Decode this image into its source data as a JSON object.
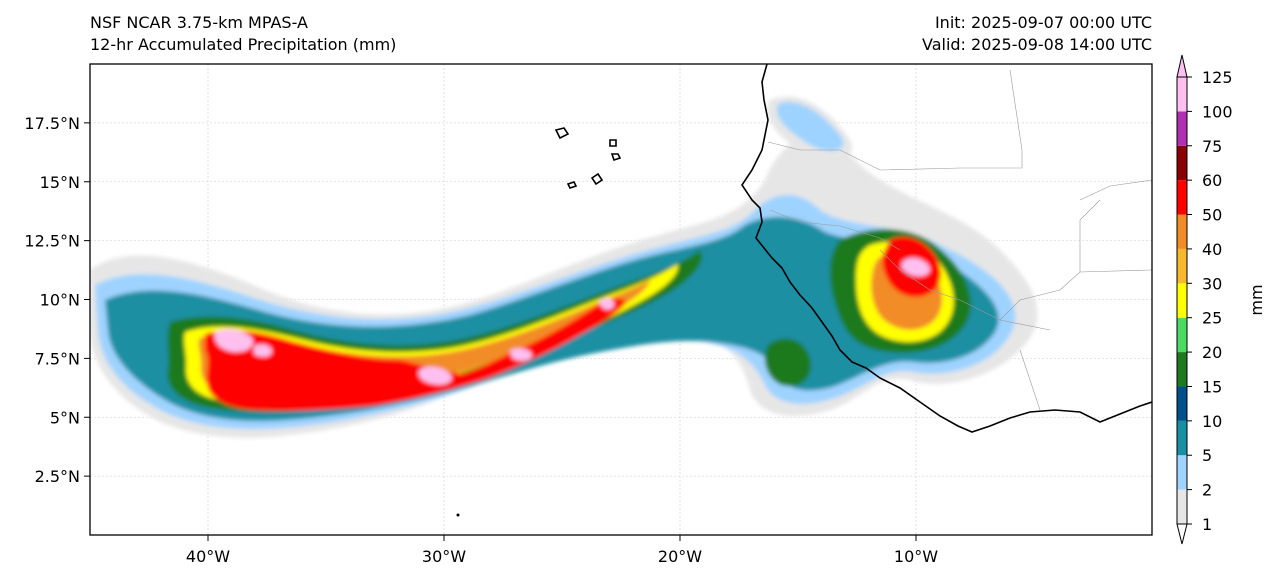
{
  "header": {
    "model": "NSF NCAR 3.75-km MPAS-A",
    "product": "12-hr Accumulated Precipitation (mm)",
    "init": "Init: 2025-09-07 00:00 UTC",
    "valid": "Valid: 2025-09-08 14:00 UTC"
  },
  "map": {
    "lon_range": [
      -45,
      0
    ],
    "lat_range": [
      0,
      20
    ],
    "lon_ticks": [
      {
        "value": -40,
        "label": "40°W"
      },
      {
        "value": -30,
        "label": "30°W"
      },
      {
        "value": -20,
        "label": "20°W"
      },
      {
        "value": -10,
        "label": "10°W"
      }
    ],
    "lat_ticks": [
      {
        "value": 2.5,
        "label": "2.5°N"
      },
      {
        "value": 5,
        "label": "5°N"
      },
      {
        "value": 7.5,
        "label": "7.5°N"
      },
      {
        "value": 10,
        "label": "10°N"
      },
      {
        "value": 12.5,
        "label": "12.5°N"
      },
      {
        "value": 15,
        "label": "15°N"
      },
      {
        "value": 17.5,
        "label": "17.5°N"
      }
    ],
    "gridlines": true
  },
  "colorbar": {
    "label": "mm",
    "levels": [
      {
        "value": "1",
        "color": "#e6e6e6"
      },
      {
        "value": "2",
        "color": "#9fd3ff"
      },
      {
        "value": "5",
        "color": "#1a8fa3"
      },
      {
        "value": "10",
        "color": "#00508a"
      },
      {
        "value": "15",
        "color": "#1e7a1e"
      },
      {
        "value": "20",
        "color": "#4cd964"
      },
      {
        "value": "25",
        "color": "#ffff00"
      },
      {
        "value": "30",
        "color": "#f5b82e"
      },
      {
        "value": "40",
        "color": "#f28c28"
      },
      {
        "value": "50",
        "color": "#ff0000"
      },
      {
        "value": "60",
        "color": "#8b0000"
      },
      {
        "value": "75",
        "color": "#b030b0"
      },
      {
        "value": "100",
        "color": "#ffc0f0"
      },
      {
        "value": "125",
        "color": ""
      }
    ]
  },
  "precip_bands": [
    {
      "level": "1",
      "color": "#e6e6e6"
    },
    {
      "level": "2",
      "color": "#9fd3ff"
    },
    {
      "level": "5",
      "color": "#1a8fa3"
    },
    {
      "level": "15",
      "color": "#1e7a1e"
    },
    {
      "level": "25",
      "color": "#ffff00"
    },
    {
      "level": "40",
      "color": "#f28c28"
    },
    {
      "level": "50",
      "color": "#ff0000"
    },
    {
      "level": "100",
      "color": "#ffc0f0"
    }
  ]
}
